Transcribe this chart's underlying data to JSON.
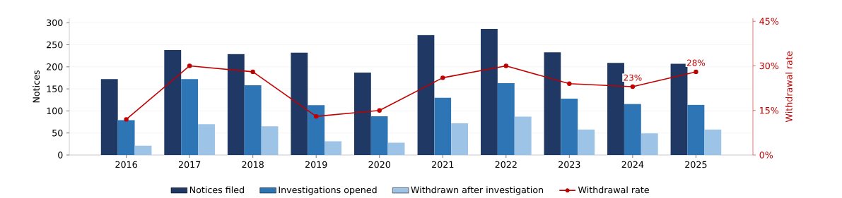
{
  "chart_data": {
    "type": "bar",
    "categories": [
      "2016",
      "2017",
      "2018",
      "2019",
      "2020",
      "2021",
      "2022",
      "2023",
      "2024",
      "2025"
    ],
    "series": [
      {
        "name": "Notices filed",
        "color": "#1f3864",
        "values": [
          172,
          238,
          229,
          232,
          187,
          272,
          286,
          233,
          209,
          207
        ]
      },
      {
        "name": "Investigations opened",
        "color": "#2e75b6",
        "values": [
          79,
          172,
          158,
          113,
          88,
          130,
          163,
          128,
          116,
          114
        ]
      },
      {
        "name": "Withdrawn after investigation",
        "color": "#9dc3e6",
        "values": [
          21,
          70,
          65,
          31,
          28,
          72,
          87,
          58,
          49,
          58
        ]
      },
      {
        "name": "Withdrawal rate",
        "color": "#c00000",
        "type": "line",
        "axis": "y2",
        "marker": "circle",
        "values": [
          12,
          30,
          28,
          13,
          15,
          26,
          30,
          24,
          23,
          28
        ],
        "value_labels": [
          null,
          null,
          null,
          null,
          null,
          null,
          null,
          null,
          "23%",
          "28%"
        ]
      }
    ],
    "ylabel": "Notices",
    "y2label": "Withdrawal rate",
    "ylim": [
      0,
      310
    ],
    "yticks": [
      0,
      50,
      100,
      150,
      200,
      250,
      300
    ],
    "y2lim": [
      0,
      46
    ],
    "y2ticks": [
      {
        "value": 0,
        "label": "0%"
      },
      {
        "value": 15,
        "label": "15%"
      },
      {
        "value": 30,
        "label": "30%"
      },
      {
        "value": 45,
        "label": "45%"
      }
    ],
    "grid": "y",
    "legend": "bottom"
  }
}
